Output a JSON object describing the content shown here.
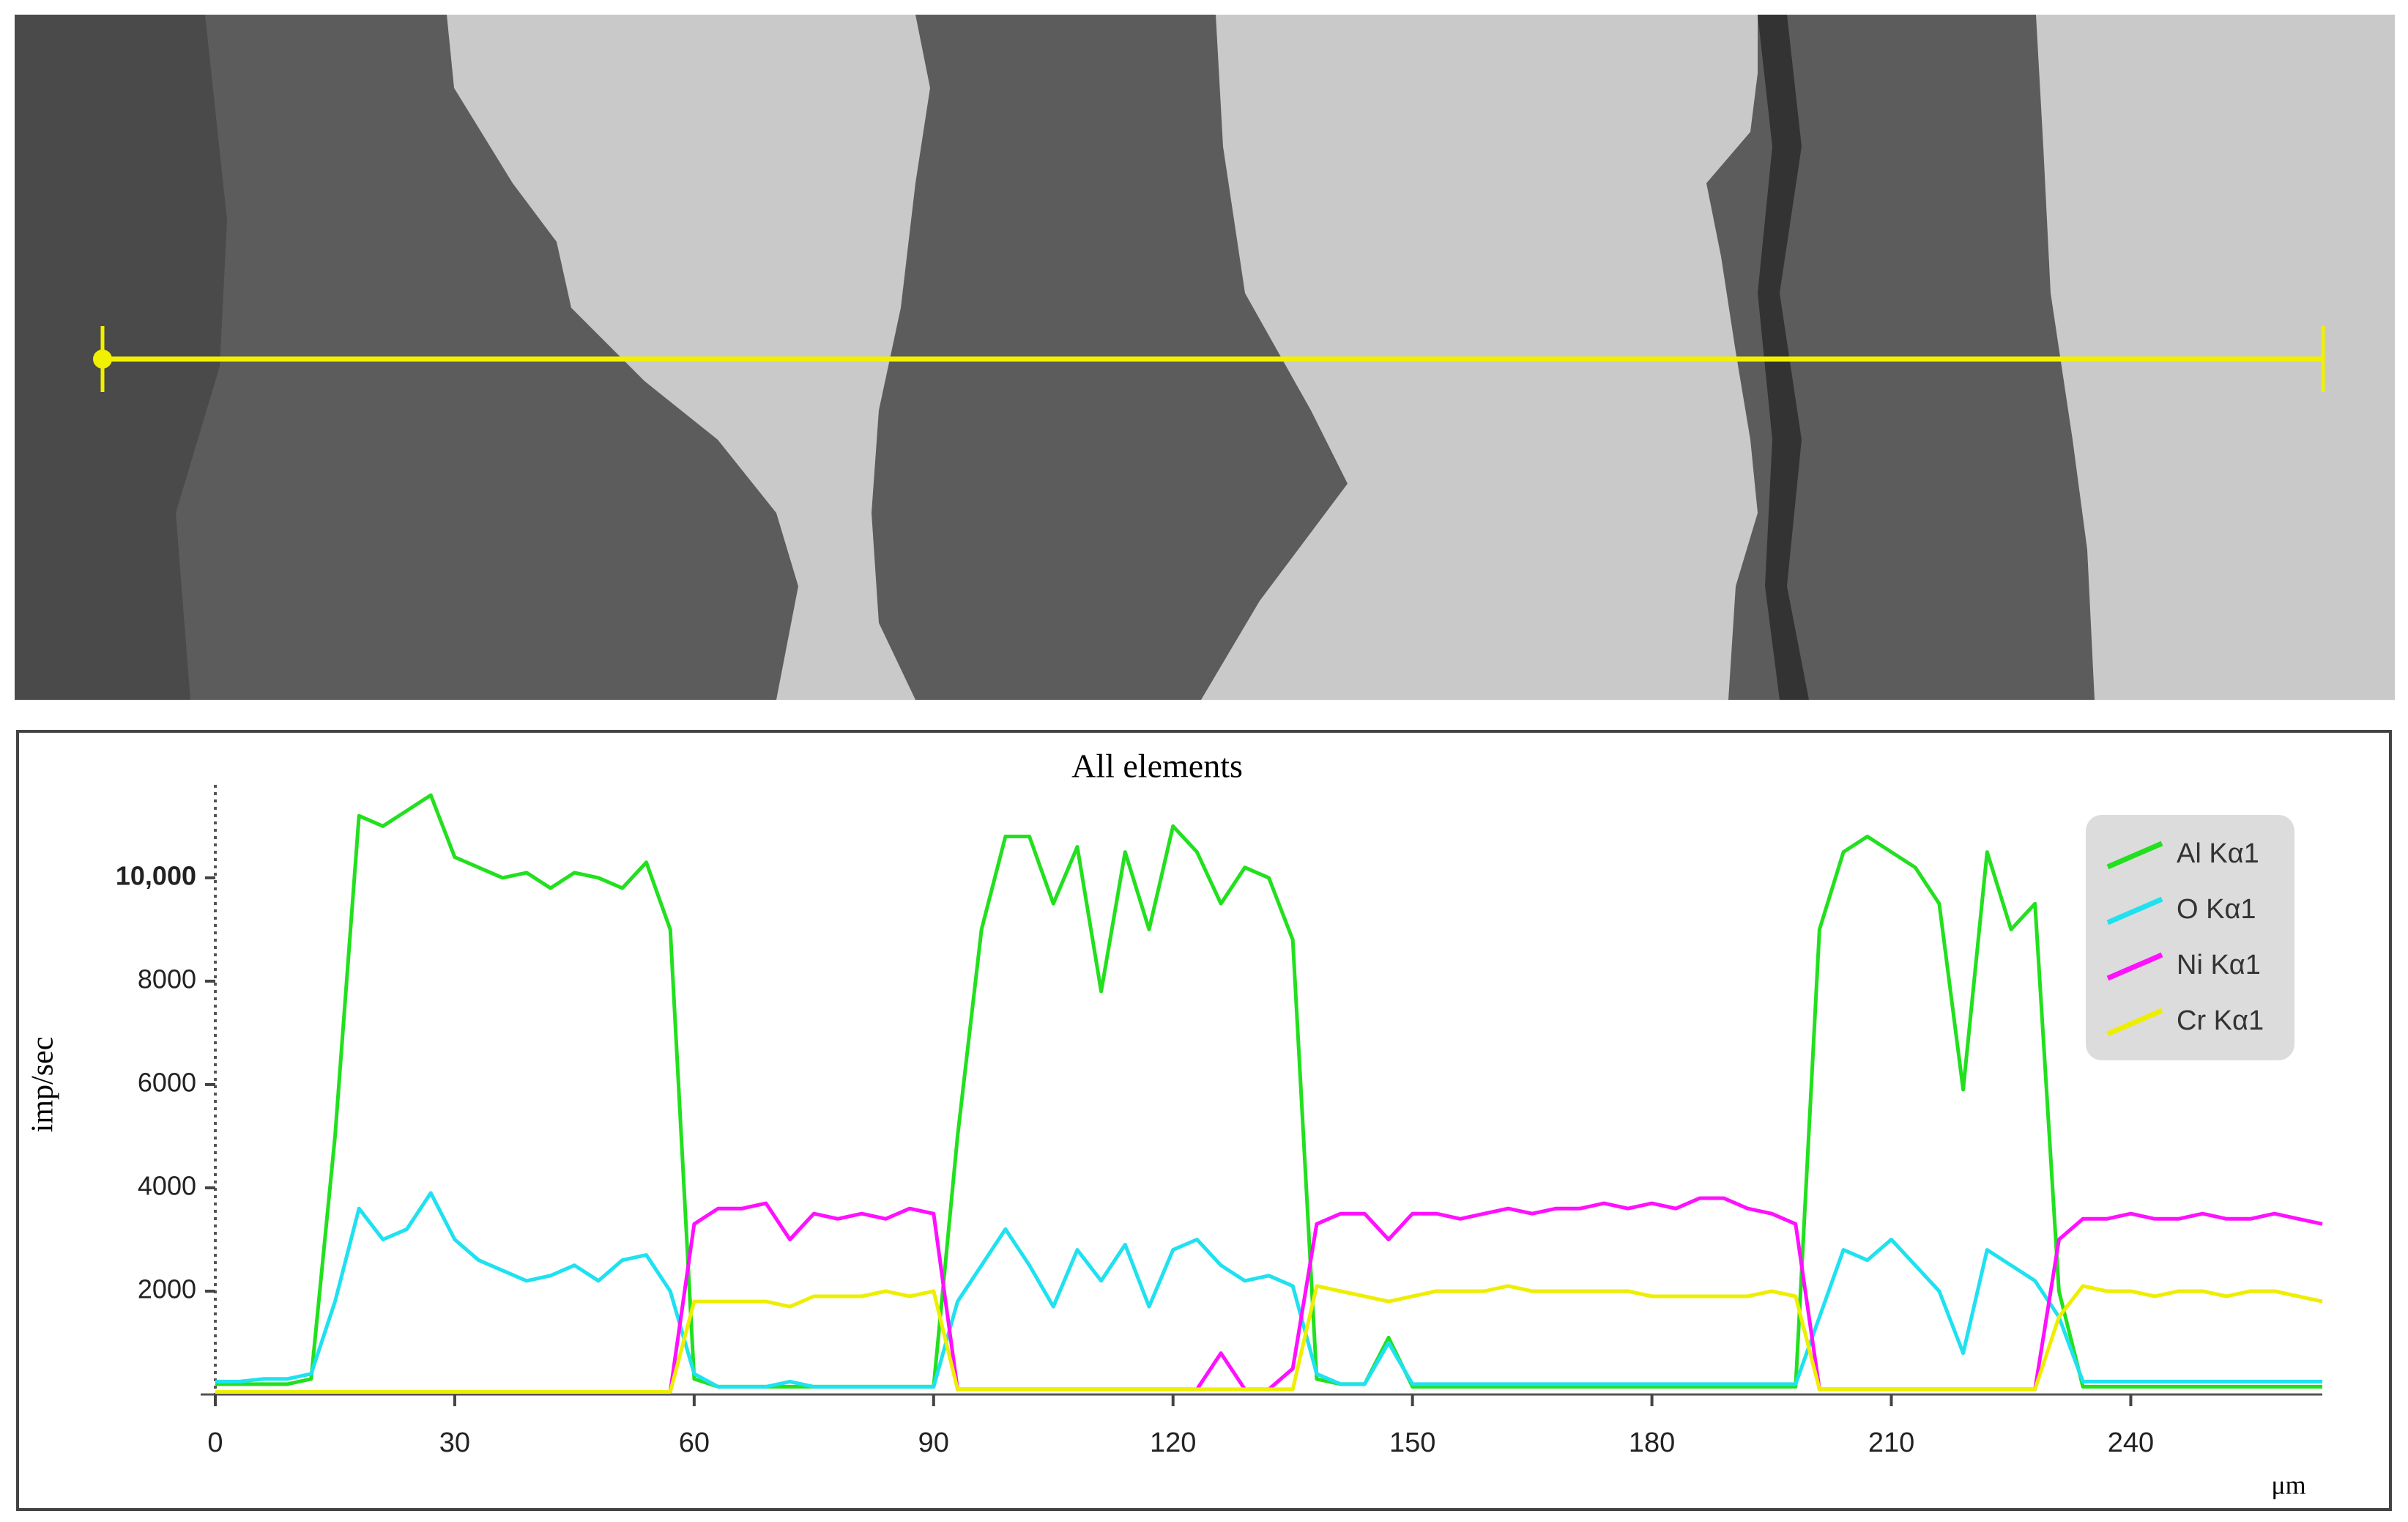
{
  "chart_data": {
    "type": "line",
    "title": "All elements",
    "x_label": "μm",
    "y_label": "imp/sec",
    "xlim": [
      0,
      264
    ],
    "ylim": [
      0,
      11800
    ],
    "xticks": [
      0,
      30,
      60,
      90,
      120,
      150,
      180,
      210,
      240
    ],
    "yticks": [
      2000,
      4000,
      6000,
      8000,
      {
        "value": 10000,
        "label": "10,000"
      }
    ],
    "legend": "upper-right",
    "x": [
      0,
      3,
      6,
      9,
      12,
      15,
      18,
      21,
      24,
      27,
      30,
      33,
      36,
      39,
      42,
      45,
      48,
      51,
      54,
      57,
      60,
      63,
      66,
      69,
      72,
      75,
      78,
      81,
      84,
      87,
      90,
      93,
      96,
      99,
      102,
      105,
      108,
      111,
      114,
      117,
      120,
      123,
      126,
      129,
      132,
      135,
      138,
      141,
      144,
      147,
      150,
      153,
      156,
      159,
      162,
      165,
      168,
      171,
      174,
      177,
      180,
      183,
      186,
      189,
      192,
      195,
      198,
      201,
      204,
      207,
      210,
      213,
      216,
      219,
      222,
      225,
      228,
      231,
      234,
      237,
      240,
      243,
      246,
      249,
      252,
      255,
      258,
      261,
      264
    ],
    "series": [
      {
        "name": "Al Kα1",
        "color": "#22e01e",
        "values": [
          200,
          200,
          200,
          200,
          300,
          5000,
          11200,
          11000,
          11300,
          11600,
          10400,
          10200,
          10000,
          10100,
          9800,
          10100,
          10000,
          9800,
          10300,
          9000,
          300,
          150,
          150,
          150,
          150,
          150,
          150,
          150,
          150,
          150,
          150,
          5000,
          9000,
          10800,
          10800,
          9500,
          10600,
          7800,
          10500,
          9000,
          11000,
          10500,
          9500,
          10200,
          10000,
          8800,
          300,
          200,
          200,
          1100,
          150,
          150,
          150,
          150,
          150,
          150,
          150,
          150,
          150,
          150,
          150,
          150,
          150,
          150,
          150,
          150,
          150,
          9000,
          10500,
          10800,
          10500,
          10200,
          9500,
          5900,
          10500,
          9000,
          9500,
          2000,
          150,
          150,
          150,
          150,
          150,
          150,
          150,
          150,
          150,
          150,
          150
        ]
      },
      {
        "name": "O Kα1",
        "color": "#1fe1f0",
        "values": [
          250,
          250,
          300,
          300,
          400,
          1800,
          3600,
          3000,
          3200,
          3900,
          3000,
          2600,
          2400,
          2200,
          2300,
          2500,
          2200,
          2600,
          2700,
          2000,
          400,
          150,
          150,
          150,
          250,
          150,
          150,
          150,
          150,
          150,
          150,
          1800,
          2500,
          3200,
          2500,
          1700,
          2800,
          2200,
          2900,
          1700,
          2800,
          3000,
          2500,
          2200,
          2300,
          2100,
          400,
          200,
          200,
          1000,
          200,
          200,
          200,
          200,
          200,
          200,
          200,
          200,
          200,
          200,
          200,
          200,
          200,
          200,
          200,
          200,
          200,
          1500,
          2800,
          2600,
          3000,
          2500,
          2000,
          800,
          2800,
          2500,
          2200,
          1500,
          250,
          250,
          250,
          250,
          250,
          250,
          250,
          250,
          250,
          250,
          250
        ]
      },
      {
        "name": "Ni Kα1",
        "color": "#ff10ff",
        "values": [
          50,
          50,
          50,
          50,
          50,
          50,
          50,
          50,
          50,
          50,
          50,
          50,
          50,
          50,
          50,
          50,
          50,
          50,
          50,
          50,
          3300,
          3600,
          3600,
          3700,
          3000,
          3500,
          3400,
          3500,
          3400,
          3600,
          3500,
          100,
          100,
          100,
          100,
          100,
          100,
          100,
          100,
          100,
          100,
          100,
          800,
          100,
          100,
          500,
          3300,
          3500,
          3500,
          3000,
          3500,
          3500,
          3400,
          3500,
          3600,
          3500,
          3600,
          3600,
          3700,
          3600,
          3700,
          3600,
          3800,
          3800,
          3600,
          3500,
          3300,
          100,
          100,
          100,
          100,
          100,
          100,
          100,
          100,
          100,
          100,
          3000,
          3400,
          3400,
          3500,
          3400,
          3400,
          3500,
          3400,
          3400,
          3500,
          3400,
          3300
        ]
      },
      {
        "name": "Cr Kα1",
        "color": "#eeee00",
        "values": [
          50,
          50,
          50,
          50,
          50,
          50,
          50,
          50,
          50,
          50,
          50,
          50,
          50,
          50,
          50,
          50,
          50,
          50,
          50,
          50,
          1800,
          1800,
          1800,
          1800,
          1700,
          1900,
          1900,
          1900,
          2000,
          1900,
          2000,
          100,
          100,
          100,
          100,
          100,
          100,
          100,
          100,
          100,
          100,
          100,
          100,
          100,
          100,
          100,
          2100,
          2000,
          1900,
          1800,
          1900,
          2000,
          2000,
          2000,
          2100,
          2000,
          2000,
          2000,
          2000,
          2000,
          1900,
          1900,
          1900,
          1900,
          1900,
          2000,
          1900,
          100,
          100,
          100,
          100,
          100,
          100,
          100,
          100,
          100,
          100,
          1500,
          2100,
          2000,
          2000,
          1900,
          2000,
          2000,
          1900,
          2000,
          2000,
          1900,
          1800
        ]
      }
    ]
  }
}
